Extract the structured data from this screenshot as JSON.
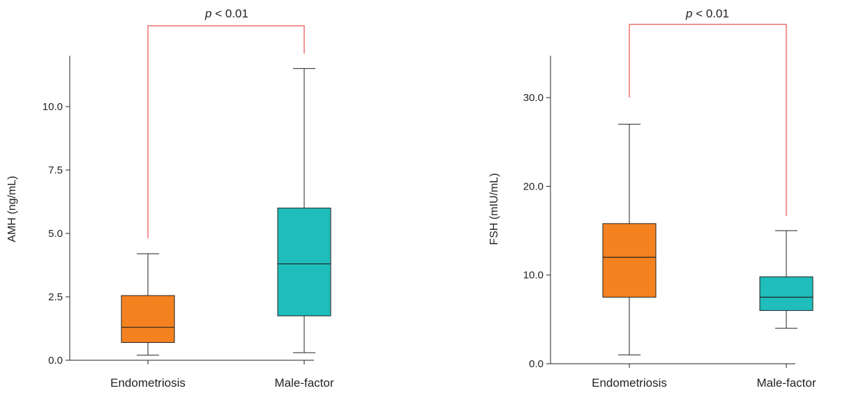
{
  "chart_data": [
    {
      "type": "box",
      "ylabel": "AMH (ng/mL)",
      "ylim": [
        0,
        12
      ],
      "yticks": [
        "0.0",
        "2.5",
        "5.0",
        "7.5",
        "10.0"
      ],
      "categories": [
        "Endometriosis",
        "Male-factor"
      ],
      "boxes": [
        {
          "name": "Endometriosis",
          "min": 0.2,
          "q1": 0.7,
          "median": 1.3,
          "q3": 2.55,
          "max": 4.2,
          "color": "#F58220"
        },
        {
          "name": "Male-factor",
          "min": 0.3,
          "q1": 1.75,
          "median": 3.8,
          "q3": 6.0,
          "max": 11.5,
          "color": "#1FBDBB"
        }
      ],
      "significance": {
        "p_symbol": "p",
        "text": "< 0.01",
        "color": "#E8514E"
      }
    },
    {
      "type": "box",
      "ylabel": "FSH (mIU/mL)",
      "ylim": [
        0,
        35
      ],
      "yticks": [
        "0.0",
        "10.0",
        "20.0",
        "30.0"
      ],
      "categories": [
        "Endometriosis",
        "Male-factor"
      ],
      "boxes": [
        {
          "name": "Endometriosis",
          "min": 1.0,
          "q1": 7.5,
          "median": 12.0,
          "q3": 15.8,
          "max": 27.0,
          "color": "#F58220"
        },
        {
          "name": "Male-factor",
          "min": 4.0,
          "q1": 6.0,
          "median": 7.5,
          "q3": 9.8,
          "max": 15.0,
          "color": "#1FBDBB"
        }
      ],
      "significance": {
        "p_symbol": "p",
        "text": "< 0.01",
        "color": "#E8514E"
      }
    }
  ]
}
